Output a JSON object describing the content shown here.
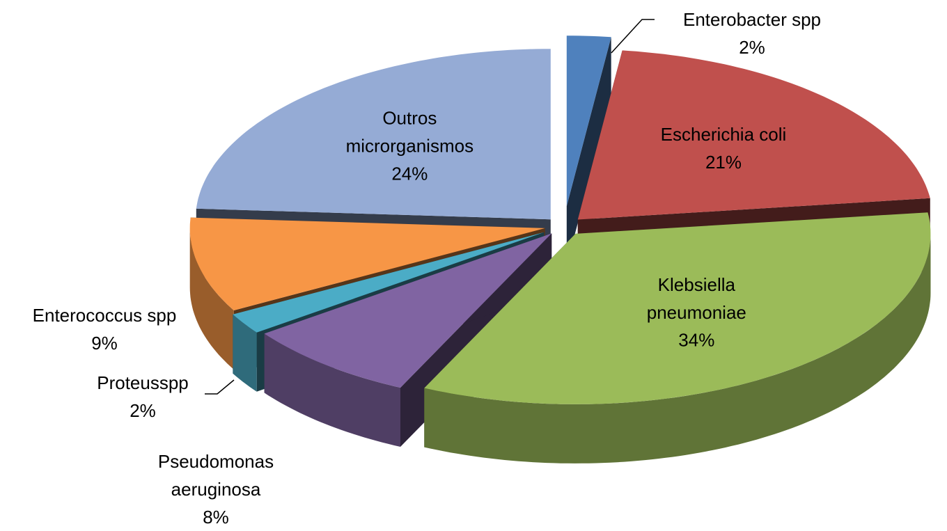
{
  "chart_data": {
    "type": "pie3d",
    "categories": [
      "Enterobacter spp",
      "Escherichia coli",
      "Klebsiella pneumoniae",
      "Pseudomonas aeruginosa",
      "Proteusspp",
      "Enterococcus spp",
      "Outros microrganismos"
    ],
    "values": [
      2,
      21,
      34,
      8,
      2,
      9,
      24
    ],
    "value_labels": [
      "2%",
      "21%",
      "34%",
      "8%",
      "2%",
      "9%",
      "24%"
    ],
    "colors": [
      "#4f81bd",
      "#c0504d",
      "#9bbb59",
      "#8064a2",
      "#4bacc6",
      "#f79646",
      "#95abd5"
    ]
  }
}
